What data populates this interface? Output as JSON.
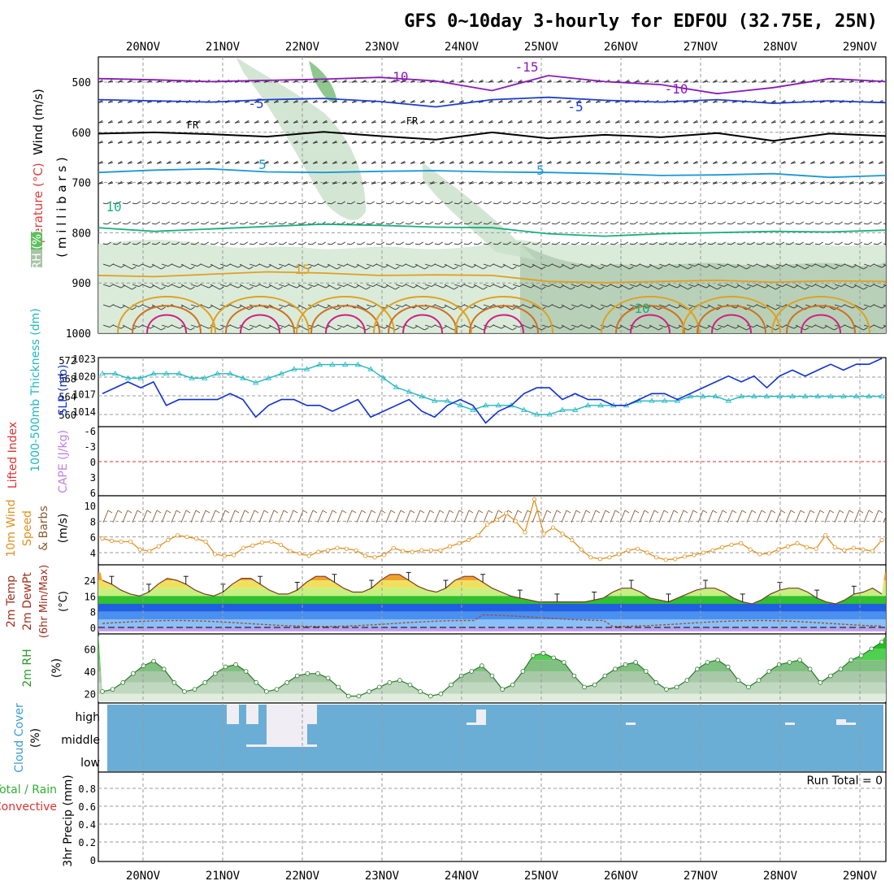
{
  "title": "GFS 0~10day 3-hourly for EDFOU (32.75E, 25N)",
  "dates": [
    "20NOV",
    "21NOV",
    "22NOV",
    "23NOV",
    "24NOV",
    "25NOV",
    "26NOV",
    "27NOV",
    "28NOV",
    "29NOV"
  ],
  "colors": {
    "grid": "#9a9a9a",
    "rh_green": "#c8e0c8",
    "thickness": "#20b8c0",
    "slp": "#1030d0",
    "wind10": "#e09020",
    "barb10": "#8a5a30",
    "temp_fill_green": "#30c030",
    "temp_fill_yellow": "#f0f060",
    "temp_fill_orange": "#f0a030",
    "dew_fill_blue": "#2060e0",
    "rh2m_green": "#40c040",
    "cloud_blue": "#6aaed6",
    "li_red": "#e03030"
  },
  "chart_data": [
    {
      "type": "contour",
      "name": "upper",
      "axis_label_wind": "Wind (m/s)",
      "axis_label_temp": "Temperature (°C)",
      "axis_label_mb": "( m i l l i b a r s )",
      "legend_rh": "RH (%)",
      "ylabels": [
        "500",
        "600",
        "700",
        "800",
        "900",
        "1000"
      ],
      "contour_labels": [
        "-15",
        "-10",
        "-10",
        "-5",
        "-5",
        "FR",
        "FR",
        "5",
        "5",
        "10",
        "10",
        "15"
      ],
      "isotherms": [
        {
          "label": "-10",
          "color": "#8a1ab8",
          "values": [
            -10.0,
            -10.2,
            -10.5,
            -10.3,
            -10.1,
            -9.8,
            -10.4,
            -12.0,
            -9.5,
            -10.5,
            -11.0,
            -12.5,
            -11.5,
            -10.0,
            -10.5
          ]
        },
        {
          "label": "-5",
          "color": "#1e40d0",
          "values": [
            -5.0,
            -5.2,
            -5.4,
            -5.0,
            -4.8,
            -5.3,
            -6.2,
            -5.0,
            -4.6,
            -5.1,
            -5.4,
            -5.0,
            -5.6,
            -5.2,
            -5.5
          ]
        },
        {
          "label": "FR",
          "color": "#000000",
          "values": [
            0.2,
            0.4,
            0.1,
            -0.3,
            0.5,
            -0.2,
            -0.8,
            0.4,
            -0.6,
            0.0,
            -0.4,
            0.3,
            -1.0,
            0.2,
            -0.2
          ]
        },
        {
          "label": "5",
          "color": "#1a98d8",
          "values": [
            5.0,
            5.4,
            5.6,
            5.1,
            5.0,
            5.2,
            5.3,
            5.1,
            5.0,
            4.8,
            4.5,
            4.6,
            4.8,
            4.2,
            4.5
          ]
        },
        {
          "label": "10",
          "color": "#18b080",
          "values": [
            10.0,
            9.4,
            9.8,
            10.2,
            10.6,
            10.4,
            10.1,
            10.0,
            9.0,
            8.6,
            9.0,
            9.2,
            9.4,
            9.3,
            9.6
          ]
        },
        {
          "label": "15",
          "color": "#e0a020",
          "values": [
            15.0,
            14.8,
            15.2,
            15.6,
            15.4,
            15.0,
            15.1,
            15.0,
            14.0,
            13.8,
            14.0,
            14.2,
            13.9,
            14.1,
            14.0
          ]
        }
      ]
    },
    {
      "type": "line",
      "name": "thickness_slp",
      "axis_label_left": "1000-500mb Thickness (dm)",
      "axis_label_right": "SLP (mb)",
      "thickness_ticks": [
        "572",
        "568",
        "564",
        "560"
      ],
      "slp_ticks": [
        "1023",
        "1020",
        "1017",
        "1014"
      ],
      "series": [
        {
          "name": "Thickness",
          "values": [
            569,
            569,
            568,
            568,
            569,
            569,
            569,
            568,
            568,
            569,
            569,
            568,
            567,
            568,
            569,
            570,
            570,
            571,
            571,
            571,
            571,
            570,
            568,
            566,
            565,
            564,
            563,
            563,
            562,
            561,
            562,
            562,
            562,
            561,
            560,
            560,
            561,
            561,
            562,
            562,
            562,
            562,
            563,
            563,
            563,
            563,
            564,
            564,
            564,
            563,
            564,
            564,
            564,
            564,
            564,
            564,
            564,
            564,
            564,
            564,
            564,
            564
          ]
        },
        {
          "name": "SLP",
          "values": [
            1017,
            1018,
            1019,
            1018,
            1019,
            1015,
            1016,
            1016,
            1016,
            1016,
            1017,
            1016,
            1013,
            1015,
            1016,
            1016,
            1015,
            1015,
            1014,
            1015,
            1016,
            1013,
            1014,
            1015,
            1016,
            1014,
            1013,
            1015,
            1016,
            1015,
            1012,
            1014,
            1015,
            1017,
            1018,
            1018,
            1016,
            1017,
            1016,
            1016,
            1015,
            1015,
            1016,
            1017,
            1017,
            1016,
            1017,
            1018,
            1019,
            1020,
            1019,
            1020,
            1018,
            1020,
            1021,
            1020,
            1021,
            1022,
            1021,
            1022,
            1022,
            1023
          ]
        }
      ]
    },
    {
      "type": "line",
      "name": "cape_li",
      "axis_label_left": "Lifted Index",
      "axis_label_right": "CAPE (J/kg)",
      "ticks": [
        "-6",
        "-3",
        "0",
        "3",
        "6"
      ],
      "li_zero_line": 0
    },
    {
      "type": "line",
      "name": "wind10m",
      "axis_label": "10m Wind Speed & Barbs",
      "axis_unit": "(m/s)",
      "ticks": [
        "10",
        "8",
        "6",
        "4"
      ],
      "values": [
        5.8,
        5.5,
        5.4,
        5.4,
        4.4,
        4.2,
        4.8,
        5.6,
        6.2,
        6.0,
        5.8,
        5.4,
        3.8,
        3.6,
        3.7,
        4.6,
        4.9,
        5.3,
        5.4,
        5.0,
        4.2,
        3.9,
        3.6,
        4.1,
        4.3,
        4.6,
        4.5,
        4.3,
        3.6,
        3.4,
        3.7,
        4.6,
        4.2,
        4.1,
        4.3,
        4.3,
        4.3,
        4.8,
        5.2,
        5.6,
        6.2,
        7.6,
        8.2,
        9.0,
        8.0,
        6.6,
        10.8,
        6.4,
        7.2,
        6.4,
        5.6,
        4.4,
        3.4,
        3.2,
        3.4,
        3.8,
        4.3,
        4.5,
        4.0,
        3.4,
        3.1,
        3.2,
        3.5,
        3.7,
        4.0,
        4.3,
        4.7,
        5.0,
        5.2,
        4.4,
        3.8,
        3.9,
        4.4,
        4.8,
        5.2,
        4.7,
        4.5,
        6.2,
        4.7,
        4.3,
        4.6,
        4.4,
        4.2,
        5.6
      ]
    },
    {
      "type": "area",
      "name": "temp2m",
      "axis_label": "2m Temp 2m DewPt (6hr Min/Max) (°C)",
      "ticks": [
        "24",
        "16",
        "8",
        "0"
      ],
      "temp": [
        24,
        22,
        19,
        17,
        16,
        18,
        22,
        25,
        24,
        22,
        19,
        17,
        16,
        18,
        22,
        25,
        25,
        22,
        19,
        17,
        17,
        19,
        23,
        26,
        26,
        23,
        20,
        18,
        18,
        20,
        24,
        27,
        27,
        24,
        21,
        19,
        18,
        20,
        24,
        26,
        26,
        23,
        20,
        18,
        16,
        15,
        14,
        13,
        13,
        13,
        13,
        13,
        13,
        14,
        15,
        18,
        20,
        20,
        18,
        15,
        14,
        13,
        15,
        17,
        19,
        20,
        20,
        18,
        15,
        13,
        12,
        14,
        17,
        19,
        20,
        20,
        18,
        15,
        13,
        12,
        14,
        17,
        18,
        20,
        17
      ]
    },
    {
      "type": "area",
      "name": "rh2m",
      "axis_label": "2m RH",
      "axis_unit": "(%)",
      "ticks": [
        "60",
        "40",
        "20"
      ],
      "values": [
        22,
        24,
        30,
        38,
        45,
        49,
        42,
        30,
        22,
        24,
        30,
        38,
        44,
        46,
        40,
        30,
        22,
        24,
        30,
        36,
        38,
        38,
        34,
        26,
        18,
        18,
        22,
        26,
        30,
        32,
        28,
        22,
        18,
        20,
        28,
        36,
        40,
        45,
        36,
        24,
        28,
        40,
        54,
        56,
        52,
        48,
        36,
        26,
        28,
        36,
        42,
        46,
        48,
        40,
        30,
        24,
        26,
        32,
        42,
        48,
        50,
        44,
        32,
        26,
        32,
        40,
        46,
        48,
        50,
        42,
        30,
        36,
        42,
        50,
        54,
        60,
        66
      ]
    },
    {
      "type": "bar",
      "name": "cloud_cover",
      "axis_label": "Cloud Cover (%)",
      "levels": [
        "high",
        "middle",
        "low"
      ]
    },
    {
      "type": "line",
      "name": "precip",
      "axis_label_left": "Total / Rain",
      "axis_label_conv": "Convective",
      "axis_label": "3hr Precip (mm)",
      "run_total_label": "Run Total = 0",
      "ticks": [
        "0.8",
        "0.6",
        "0.4",
        "0.2",
        "0"
      ],
      "ylim": [
        0,
        0.9
      ]
    }
  ]
}
